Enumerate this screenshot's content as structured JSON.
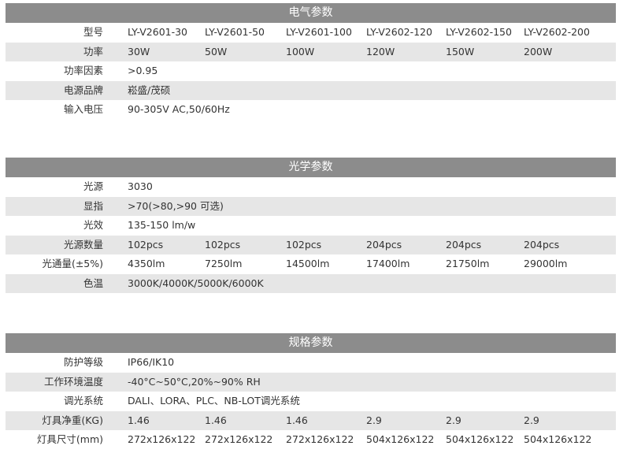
{
  "sections": [
    {
      "title": "电气参数",
      "rows": [
        {
          "label": "型号",
          "values": [
            "LY-V2601-30",
            "LY-V2601-50",
            "LY-V2601-100",
            "LY-V2602-120",
            "LY-V2602-150",
            "LY-V2602-200"
          ]
        },
        {
          "label": "功率",
          "values": [
            "30W",
            "50W",
            "100W",
            "120W",
            "150W",
            "200W"
          ]
        },
        {
          "label": "功率因素",
          "values": [
            ">0.95"
          ]
        },
        {
          "label": "电源品牌",
          "values": [
            "崧盛/茂硕"
          ]
        },
        {
          "label": "输入电压",
          "values": [
            "90-305V AC,50/60Hz"
          ]
        }
      ]
    },
    {
      "title": "光学参数",
      "rows": [
        {
          "label": "光源",
          "values": [
            "3030"
          ]
        },
        {
          "label": "显指",
          "values": [
            ">70(>80,>90 可选)"
          ]
        },
        {
          "label": "光效",
          "values": [
            "135-150 lm/w"
          ]
        },
        {
          "label": "光源数量",
          "values": [
            "102pcs",
            "102pcs",
            "102pcs",
            "204pcs",
            "204pcs",
            "204pcs"
          ]
        },
        {
          "label": "光通量(±5%)",
          "values": [
            "4350lm",
            "7250lm",
            "14500lm",
            "17400lm",
            "21750lm",
            "29000lm"
          ]
        },
        {
          "label": "色温",
          "values": [
            "3000K/4000K/5000K/6000K"
          ]
        }
      ]
    },
    {
      "title": "规格参数",
      "rows": [
        {
          "label": "防护等级",
          "values": [
            "IP66/IK10"
          ]
        },
        {
          "label": "工作环境温度",
          "values": [
            "-40°C~50°C,20%~90% RH"
          ]
        },
        {
          "label": "调光系统",
          "values": [
            "DALI、LORA、PLC、NB-LOT调光系统"
          ]
        },
        {
          "label": "灯具净重(KG)",
          "values": [
            "1.46",
            "1.46",
            "1.46",
            "2.9",
            "2.9",
            "2.9"
          ]
        },
        {
          "label": "灯具尺寸(mm)",
          "values": [
            "272x126x122",
            "272x126x122",
            "272x126x122",
            "504x126x122",
            "504x126x122",
            "504x126x122"
          ]
        }
      ]
    }
  ]
}
